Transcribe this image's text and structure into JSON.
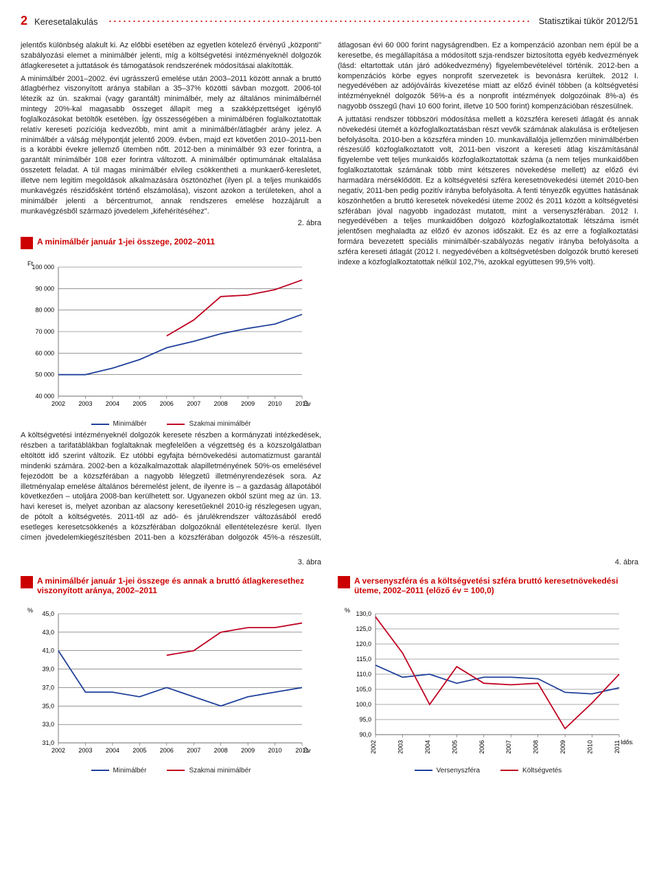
{
  "header": {
    "page_number": "2",
    "section": "Keresetalakulás",
    "publication": "Statisztikai tükör 2012/51"
  },
  "body": {
    "col1_p1": "jelentős különbség alakult ki. Az előbbi esetében az egyetlen kötelező érvényű „központi\" szabályozási elemet a minimálbér jelenti, míg a költségvetési intézményeknél dolgozók átlagkeresetet a juttatások és támogatások rendszerének módosításai alakították.",
    "col1_p2": "A minimálbér 2001–2002. évi ugrásszerű emelése után 2003–2011 között annak a bruttó átlagbérhez viszonyított aránya stabilan a 35–37% közötti sávban mozgott. 2006-tól létezik az ún. szakmai (vagy garantált) minimálbér, mely az általános minimálbérnél mintegy 20%-kal magasabb összeget állapít meg a szakképzettséget igénylő foglalkozásokat betöltők esetében. Így összességében a minimálbéren foglalkoztatottak relatív kereseti pozíciója kedvezőbb, mint amit a minimálbér/átlagbér arány jelez. A minimálbér a válság mélypontját jelentő 2009. évben, majd ezt követően 2010–2011-ben is a korábbi évekre jellemző ütemben nőtt. 2012-ben a minimálbér 93 ezer forintra, a garantált minimálbér 108 ezer forintra változott. A minimálbér optimumának eltalalása összetett feladat. A túl magas minimálbér elvileg csökkentheti a munkaerő-keresletet, illetve nem legitim megoldások alkalmazására ösztönözhet (ilyen pl. a teljes munkaidős munkavégzés részidősként történő elszámolása), viszont azokon a területeken, ahol a minimálbér jelenti a bércentrumot, annak rendszeres emelése hozzájárult a munkavégzésből származó jövedelem „kifehérítéséhez\".",
    "col2_p1": "A költségvetési intézményeknél dolgozók keresete részben a kormányzati intézkedések, részben a tarifatáblákban foglaltaknak megfelelően a végzettség és a közszolgálatban eltöltött idő szerint változik. Ez utóbbi egyfajta bérnövekedési automatizmust garantál mindenki számára. 2002-ben a közalkalmazottak alapilletményének 50%-os emelésével fejezödött be a közszférában a nagyobb lélegzetű illetményrendezések sora. Az illetményalap emelése általános béremelést jelent, de ilyenre is – a gazdaság állapotából következően – utoljára 2008-ban kerülhetett sor. Ugyanezen okból szünt meg az ún. 13. havi kereset is, melyet azonban az alacsony keresetűeknél 2010-ig részlegesen ugyan, de pótolt a költségvetés. 2011-től az adó- és járulékrendszer változásából eredő esetleges keresetcsökkenés a közszférában dolgozóknál ellentételezésre kerül. Ilyen címen jövedelemkiegészítésben 2011-ben a közszférában dolgozók 45%-a részesült, átlagosan évi 60 000 forint nagyságrendben. Ez a kompenzáció azonban nem épül be a keresetbe, és megállapítása a módosított szja-rendszer biztosította egyéb kedvezmények (lásd: eltartottak után járó adókedvezmény) figyelembevételével történik. 2012-ben a kompenzációs körbe egyes nonprofit szervezetek is bevonásra kerültek. 2012 I. negyedévében az adójóváírás kivezetése miatt az előző évinél többen (a költségvetési intézményeknél dolgozók 56%-a és a nonprofit intézmények dolgozóinak 8%-a) és nagyobb összegű (havi 10 600 forint, illetve 10 500 forint) kompenzációban részesülnek.",
    "col2_p2": "A juttatási rendszer többszöri módosítása mellett a közszféra kereseti átlagát és annak növekedési ütemét a közfoglalkoztatásban részt vevők számának alakulása is erőteljesen befolyásolta. 2010-ben a közszféra minden 10. munkavállalója jellemzően minimálbérben részesülő közfoglalkoztatott volt, 2011-ben viszont a kereseti átlag kiszámításánál figyelembe vett teljes munkaidős közfoglalkoztatottak száma (a nem teljes munkaidőben foglalkoztatottak számának több mint kétszeres növekedése mellett) az előző évi harmadára mérséklődött. Ez a költségvetési szféra keresetnövekedési ütemét 2010-ben negatív, 2011-ben pedig pozitív irányba befolyásolta. A fenti tényezők együttes hatásának köszönhetően a bruttó keresetek növekedési üteme 2002 és 2011 között a költségvetési szférában jóval nagyobb ingadozást mutatott, mint a versenyszférában. 2012 I. negyedévében a teljes munkaidőben dolgozó közfoglalkoztatottak létszáma ismét jelentősen meghaladta az előző év azonos időszakit. Ez és az erre a foglalkoztatási formára bevezetett speciális minimálbér-szabályozás negatív irányba befolyásolta a szféra kereseti átlagát (2012 I. negyedévében a költségvetésben dolgozók bruttó kereseti indexe a közfoglalkoztatottak nélkül 102,7%, azokkal együttesen 99,5% volt)."
  },
  "chart2": {
    "label": "2. ábra",
    "title": "A minimálbér január 1-jei összege, 2002–2011",
    "y_label": "Ft",
    "x_label": "Év",
    "y_min": 40000,
    "y_max": 100000,
    "y_step": 10000,
    "years": [
      "2002",
      "2003",
      "2004",
      "2005",
      "2006",
      "2007",
      "2008",
      "2009",
      "2010",
      "2011"
    ],
    "series": {
      "minimalber": {
        "name": "Minimálbér",
        "color": "#1f3f9a",
        "values": [
          50000,
          50000,
          53000,
          57000,
          62500,
          65500,
          69000,
          71500,
          73500,
          78000
        ]
      },
      "szakmai": {
        "name": "Szakmai minimálbér",
        "color": "#c00020",
        "values": [
          null,
          null,
          null,
          null,
          68000,
          75400,
          86300,
          87000,
          89500,
          94000
        ]
      }
    },
    "grid_color": "#555",
    "bg": "#ffffff",
    "font_size": 9
  },
  "chart3": {
    "label": "3. ábra",
    "title": "A minimálbér január 1-jei összege és annak a bruttó átlagkeresethez viszonyított aránya, 2002–2011",
    "y_label": "%",
    "x_label": "Év",
    "y_min": 31,
    "y_max": 45,
    "y_step": 2,
    "years": [
      "2002",
      "2003",
      "2004",
      "2005",
      "2006",
      "2007",
      "2008",
      "2009",
      "2010",
      "2011"
    ],
    "series": {
      "minimalber": {
        "name": "Minimálbér",
        "color": "#1f3f9a",
        "values": [
          41,
          36.5,
          36.5,
          36,
          37,
          36,
          35,
          36,
          36.5,
          37
        ]
      },
      "szakmai": {
        "name": "Szakmai minimálbér",
        "color": "#c00020",
        "values": [
          null,
          null,
          null,
          null,
          40.5,
          41,
          43,
          43.5,
          43.5,
          44
        ]
      }
    },
    "grid_color": "#555",
    "bg": "#ffffff",
    "font_size": 9
  },
  "chart4": {
    "label": "4. ábra",
    "title": "A versenyszféra és a költségvetési szféra bruttó keresetnövekedési üteme, 2002–2011 (előző év = 100,0)",
    "y_label": "%",
    "x_label": "Időszak",
    "y_min": 90,
    "y_max": 130,
    "y_step": 5,
    "years": [
      "2002",
      "2003",
      "2004",
      "2005",
      "2006",
      "2007",
      "2008",
      "2009",
      "2010",
      "2011"
    ],
    "series": {
      "verseny": {
        "name": "Versenyszféra",
        "color": "#1f3f9a",
        "values": [
          113,
          109,
          110,
          107,
          109,
          109,
          108.5,
          104,
          103.5,
          105.5
        ]
      },
      "koltseg": {
        "name": "Költségvetés",
        "color": "#c00020",
        "values": [
          129,
          117,
          100,
          112.5,
          107,
          106.5,
          107,
          92,
          100.5,
          110
        ]
      }
    },
    "grid_color": "#555",
    "bg": "#ffffff",
    "font_size": 9
  }
}
